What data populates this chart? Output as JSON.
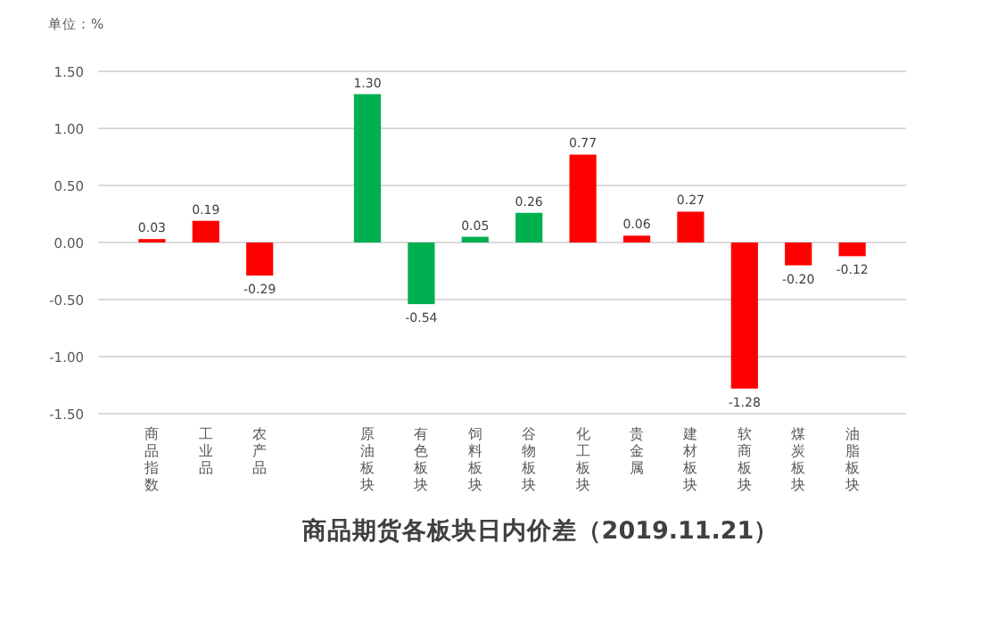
{
  "chart_data": {
    "type": "bar",
    "title": "商品期货各板块日内价差（2019.11.21）",
    "ylabel": "单位：%",
    "categories": [
      "商品指数",
      "工业品",
      "农产品",
      null,
      "原油板块",
      "有色板块",
      "饲料板块",
      "谷物板块",
      "化工板块",
      "贵金属",
      "建材板块",
      "软商板块",
      "煤炭板块",
      "油脂板块"
    ],
    "values": [
      0.03,
      0.19,
      -0.29,
      null,
      1.3,
      -0.54,
      0.05,
      0.26,
      0.77,
      0.06,
      0.27,
      -1.28,
      -0.2,
      -0.12
    ],
    "value_labels": [
      "0.03",
      "0.19",
      "-0.29",
      null,
      "1.30",
      "-0.54",
      "0.05",
      "0.26",
      "0.77",
      "0.06",
      "0.27",
      "-1.28",
      "-0.20",
      "-0.12"
    ],
    "colors": [
      "#ff0000",
      "#ff0000",
      "#ff0000",
      null,
      "#00b050",
      "#00b050",
      "#00b050",
      "#00b050",
      "#ff0000",
      "#ff0000",
      "#ff0000",
      "#ff0000",
      "#ff0000",
      "#ff0000"
    ],
    "ylim": [
      -1.5,
      1.5
    ],
    "yticks": [
      {
        "value": 1.5,
        "label": "1.50"
      },
      {
        "value": 1.0,
        "label": "1.00"
      },
      {
        "value": 0.5,
        "label": "0.50"
      },
      {
        "value": 0,
        "label": "0.00"
      },
      {
        "value": -0.5,
        "label": "-0.50"
      },
      {
        "value": -1.0,
        "label": "-1.00"
      },
      {
        "value": -1.5,
        "label": "-1.50"
      }
    ],
    "grid": "y"
  }
}
